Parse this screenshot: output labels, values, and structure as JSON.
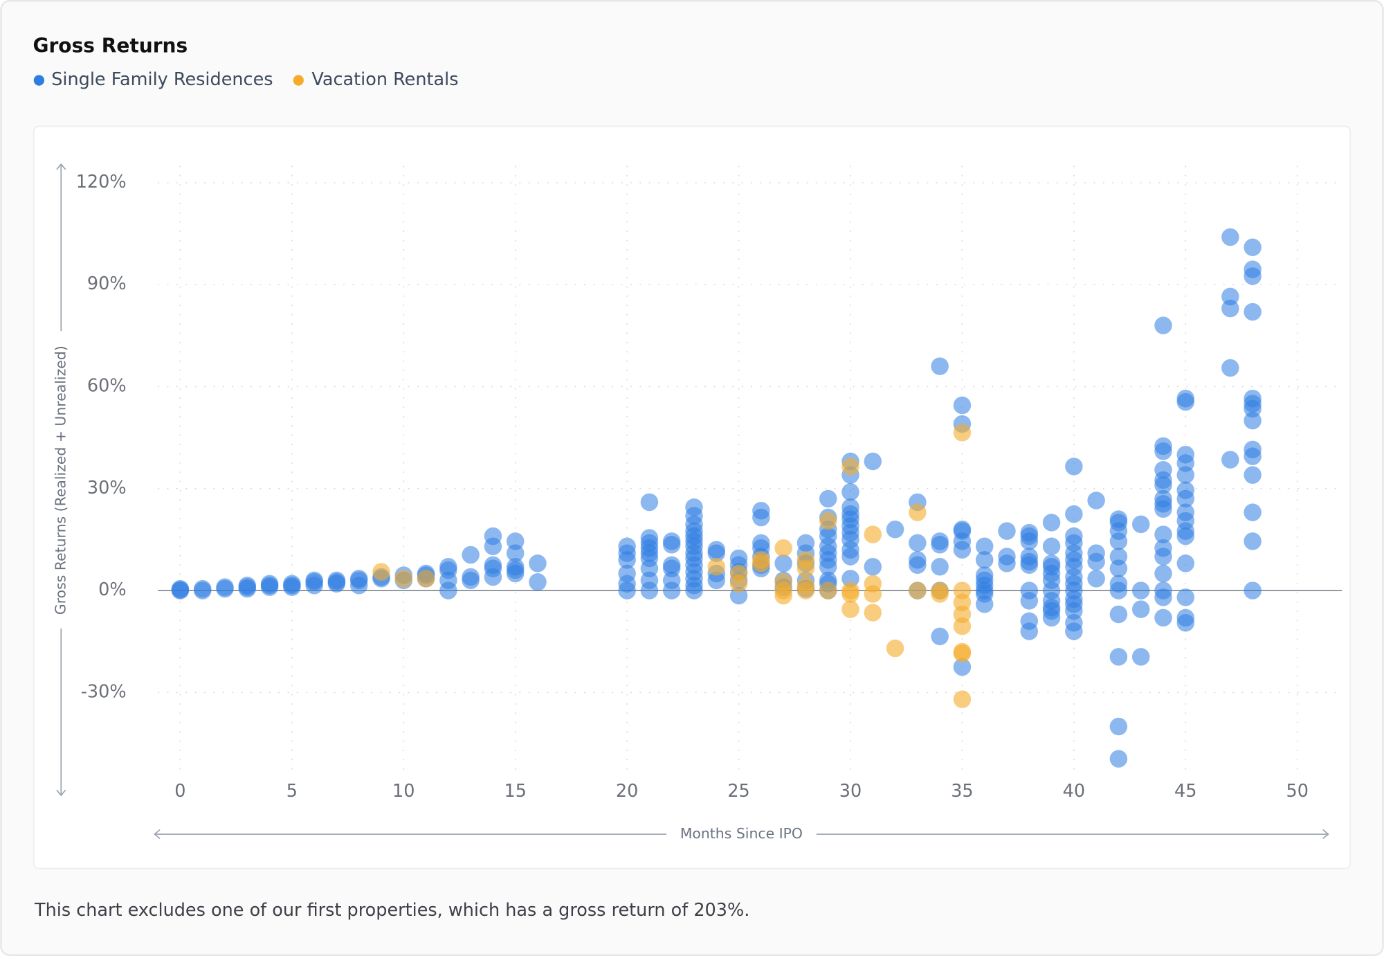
{
  "chart_data": {
    "type": "scatter",
    "title": "Gross Returns",
    "x_label": "Months Since IPO",
    "y_label": "Gross Returns (Realized + Unrealized)",
    "xlim": [
      -1,
      52
    ],
    "ylim": [
      -55,
      125
    ],
    "xticks": [
      0,
      5,
      10,
      15,
      20,
      25,
      30,
      35,
      40,
      45,
      50
    ],
    "yticks": [
      {
        "value": -30,
        "label": "-30%"
      },
      {
        "value": 0,
        "label": "0%"
      },
      {
        "value": 30,
        "label": "30%"
      },
      {
        "value": 60,
        "label": "60%"
      },
      {
        "value": 90,
        "label": "90%"
      },
      {
        "value": 120,
        "label": "120%"
      }
    ],
    "grid": true,
    "series": [
      {
        "name": "Single Family Residences",
        "color": "#2f7de1",
        "x": [
          0,
          0,
          0,
          1,
          1,
          2,
          2,
          3,
          3,
          3,
          4,
          4,
          4,
          5,
          5,
          5,
          6,
          6,
          6,
          7,
          7,
          7,
          8,
          8,
          8,
          9,
          9,
          10,
          10,
          11,
          11,
          11,
          12,
          12,
          12,
          12,
          13,
          13,
          13,
          14,
          14,
          14,
          14,
          14,
          15,
          15,
          15,
          15,
          15,
          16,
          16,
          20,
          20,
          20,
          20,
          20,
          20,
          21,
          21,
          21,
          21,
          21,
          21,
          21,
          21,
          21,
          22,
          22,
          22,
          22,
          22,
          22,
          23,
          23,
          23,
          23,
          23,
          23,
          23,
          23,
          23,
          23,
          23,
          23,
          23,
          23,
          24,
          24,
          24,
          24,
          25,
          25,
          25,
          25,
          25,
          26,
          26,
          26,
          26,
          26,
          26,
          26,
          27,
          27,
          27,
          28,
          28,
          28,
          28,
          28,
          29,
          29,
          29,
          29,
          29,
          29,
          29,
          29,
          29,
          29,
          29,
          30,
          30,
          30,
          30,
          30,
          30,
          30,
          30,
          30,
          30,
          30,
          30,
          31,
          31,
          32,
          33,
          33,
          33,
          33,
          33,
          34,
          34,
          34,
          34,
          34,
          34,
          35,
          35,
          35,
          35,
          35,
          35,
          35,
          36,
          36,
          36,
          36,
          36,
          36,
          36,
          36,
          37,
          37,
          37,
          38,
          38,
          38,
          38,
          38,
          38,
          38,
          38,
          38,
          38,
          39,
          39,
          39,
          39,
          39,
          39,
          39,
          39,
          39,
          39,
          39,
          40,
          40,
          40,
          40,
          40,
          40,
          40,
          40,
          40,
          40,
          40,
          40,
          40,
          40,
          40,
          41,
          41,
          41,
          41,
          42,
          42,
          42,
          42,
          42,
          42,
          42,
          42,
          42,
          42,
          42,
          42,
          43,
          43,
          43,
          43,
          44,
          44,
          44,
          44,
          44,
          44,
          44,
          44,
          44,
          44,
          44,
          44,
          44,
          44,
          44,
          44,
          45,
          45,
          45,
          45,
          45,
          45,
          45,
          45,
          45,
          45,
          45,
          45,
          45,
          45,
          45,
          47,
          47,
          47,
          47,
          47,
          48,
          48,
          48,
          48,
          48,
          48,
          48,
          48,
          48,
          48,
          48,
          48,
          48,
          48
        ],
        "values": [
          0,
          0.5,
          0.2,
          0,
          0.5,
          1,
          0.5,
          1.5,
          1,
          0.5,
          1.5,
          2,
          1,
          1.5,
          2,
          1,
          2.5,
          1.5,
          3,
          2.5,
          3,
          2,
          3,
          1.5,
          3.5,
          3.5,
          4,
          4.5,
          3,
          4.5,
          3.5,
          5,
          7,
          6,
          3,
          0,
          10.5,
          3,
          4,
          16,
          13,
          7.5,
          6.5,
          4,
          14.5,
          11,
          6,
          5,
          7,
          8,
          2.5,
          13,
          11,
          9,
          5,
          2,
          0,
          26,
          15.5,
          14,
          12.5,
          11,
          9.5,
          6.5,
          3,
          0,
          14.5,
          13.5,
          7.5,
          6.5,
          3,
          0,
          24.5,
          22,
          19.5,
          17.5,
          16,
          14.5,
          13,
          11,
          9.5,
          7.5,
          5.5,
          3.5,
          1.5,
          0,
          12,
          11,
          5,
          3,
          9.5,
          7.5,
          5.5,
          3,
          -1.5,
          23.5,
          21.5,
          14,
          12.5,
          10,
          7.5,
          6.5,
          8,
          1,
          3,
          14,
          11,
          8,
          3,
          0.5,
          27,
          21.5,
          18,
          16,
          13,
          11,
          9,
          7,
          3,
          2,
          0,
          38,
          34,
          29,
          24.5,
          22.5,
          21,
          19,
          17,
          15,
          12,
          10,
          3.5,
          38,
          7,
          18,
          26,
          14,
          9,
          7.5,
          0,
          66,
          14.5,
          13.5,
          7,
          0,
          -13.5,
          54.5,
          49,
          18,
          17.5,
          14.5,
          12,
          -22.5,
          13,
          9,
          4.5,
          3,
          1.5,
          0,
          -1,
          -4,
          17.5,
          10,
          8,
          17,
          16,
          14.5,
          10,
          8.5,
          7.5,
          0,
          -3,
          -9,
          -12,
          20,
          13,
          8,
          7,
          5,
          3,
          0,
          -3,
          -5,
          -6,
          -8,
          36.5,
          22.5,
          16,
          14,
          11,
          9,
          7,
          4,
          2,
          0,
          -2.5,
          -4,
          -6,
          -9.5,
          -12,
          26.5,
          11,
          8.5,
          3.5,
          21,
          20,
          17.5,
          14.5,
          10,
          6.5,
          2,
          0,
          -7,
          -19.5,
          -40,
          -49.5,
          19.5,
          0,
          -5.5,
          -19.5,
          78,
          42.5,
          41,
          35.5,
          32.5,
          31,
          27,
          25.5,
          24,
          16.5,
          12.5,
          10,
          5,
          0,
          -2,
          -8,
          56.5,
          55.5,
          40,
          37.5,
          34,
          29.5,
          27,
          23,
          20.5,
          17.5,
          16,
          8,
          -2,
          -8,
          -9.5,
          104,
          86.5,
          83,
          65.5,
          38.5,
          101,
          94.5,
          92.5,
          82,
          56.5,
          55,
          53.5,
          50,
          41.5,
          39.5,
          34,
          23,
          14.5,
          0
        ]
      },
      {
        "name": "Vacation Rentals",
        "color": "#f5ac2a",
        "x": [
          9,
          10,
          11,
          24,
          25,
          25,
          26,
          26,
          27,
          27,
          27,
          27,
          28,
          28,
          28,
          28,
          29,
          29,
          30,
          30,
          30,
          30,
          31,
          31,
          31,
          31,
          32,
          33,
          33,
          34,
          34,
          35,
          35,
          35,
          35,
          35,
          35,
          35,
          35
        ],
        "values": [
          5.5,
          3.5,
          3.5,
          7,
          5,
          2,
          9,
          8,
          12.5,
          2.5,
          0,
          -1.5,
          9,
          6.5,
          1.5,
          0,
          20.5,
          0,
          36.5,
          0,
          -1,
          -5.5,
          16.5,
          2,
          -1,
          -6.5,
          -17,
          23,
          0,
          0,
          -1,
          46.5,
          0,
          -3.5,
          -7,
          -10.5,
          -18,
          -18.5,
          -32
        ]
      }
    ]
  },
  "footnote": "This chart excludes one of our first properties, which has a gross return of 203%."
}
